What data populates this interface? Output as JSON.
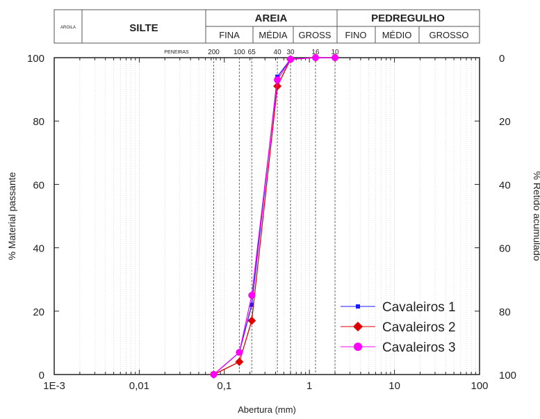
{
  "soil_table": {
    "argila": "ARGILA",
    "silte": "SILTE",
    "areia": "AREIA",
    "pedregulho": "PEDREGULHO",
    "areia_sub": [
      "FINA",
      "MÉDIA",
      "GROSS"
    ],
    "pedregulho_sub": [
      "FINO",
      "MÉDIO",
      "GROSSO"
    ]
  },
  "sieves": {
    "label": "PENEIRAS",
    "items": [
      {
        "label": "200",
        "x": 0.075
      },
      {
        "label": "100",
        "x": 0.15
      },
      {
        "label": "65",
        "x": 0.21
      },
      {
        "label": "40",
        "x": 0.42
      },
      {
        "label": "30",
        "x": 0.6
      },
      {
        "label": "16",
        "x": 1.18
      },
      {
        "label": "10",
        "x": 2.0
      }
    ]
  },
  "chart_data": {
    "type": "scatter",
    "xlabel": "Abertura (mm)",
    "ylabel": "% Material passante",
    "y2label": "% Retido acumulado",
    "xscale": "log",
    "xlim": [
      0.001,
      100
    ],
    "ylim": [
      0,
      100
    ],
    "y2lim": [
      100,
      0
    ],
    "xticks": [
      {
        "v": 0.001,
        "label": "1E-3"
      },
      {
        "v": 0.01,
        "label": "0,01"
      },
      {
        "v": 0.1,
        "label": "0,1"
      },
      {
        "v": 1,
        "label": "1"
      },
      {
        "v": 10,
        "label": "10"
      },
      {
        "v": 100,
        "label": "100"
      }
    ],
    "yticks": [
      0,
      20,
      40,
      60,
      80,
      100
    ],
    "y2ticks": [
      100,
      80,
      60,
      40,
      20,
      0
    ],
    "grid": "vertical-dotted",
    "legend_position": "bottom-right",
    "series": [
      {
        "name": "Cavaleiros 1",
        "color": "#1a1aff",
        "marker": "square",
        "x": [
          0.075,
          0.15,
          0.21,
          0.42,
          0.6,
          1.18,
          2.0
        ],
        "y": [
          0,
          7,
          22,
          94,
          99.5,
          100,
          100
        ]
      },
      {
        "name": "Cavaleiros 2",
        "color": "#e00000",
        "marker": "diamond",
        "x": [
          0.075,
          0.15,
          0.21,
          0.42,
          0.6,
          1.18,
          2.0
        ],
        "y": [
          0,
          4,
          17,
          91,
          99.5,
          100,
          100
        ]
      },
      {
        "name": "Cavaleiros 3",
        "color": "#ff00ff",
        "marker": "circle",
        "x": [
          0.075,
          0.15,
          0.21,
          0.42,
          0.6,
          1.18,
          2.0
        ],
        "y": [
          0,
          7,
          25,
          93,
          99.5,
          100,
          100
        ]
      }
    ]
  }
}
